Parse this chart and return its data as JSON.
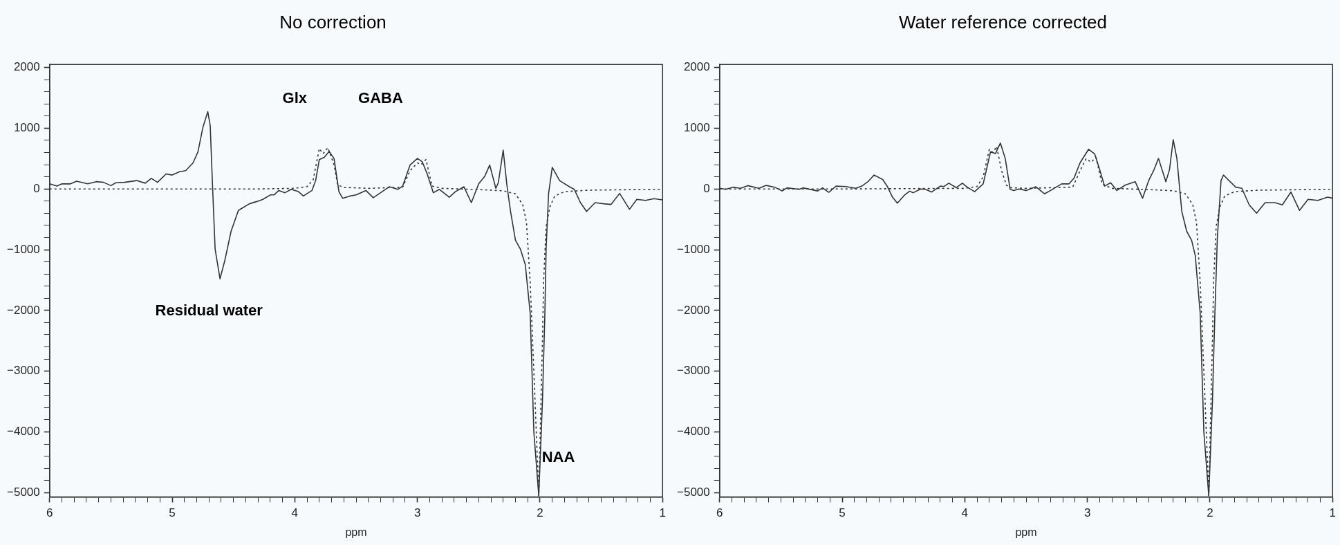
{
  "chart_data": [
    {
      "type": "line",
      "title": "No correction",
      "xlabel": "ppm",
      "xlim": [
        6,
        1
      ],
      "ylim": [
        -5070,
        2050
      ],
      "xticks": [
        6,
        {
          "value": 5.9,
          "label": null
        },
        {
          "value": 5.8,
          "label": null
        },
        {
          "value": 5.7,
          "label": null
        },
        {
          "value": 5.6,
          "label": null
        },
        {
          "value": 5.5,
          "label": null
        },
        {
          "value": 5.4,
          "label": null
        },
        {
          "value": 5.3,
          "label": null
        },
        {
          "value": 5.2,
          "label": null
        },
        {
          "value": 5.1,
          "label": null
        },
        5,
        {
          "value": 4.9,
          "label": null
        },
        {
          "value": 4.8,
          "label": null
        },
        {
          "value": 4.7,
          "label": null
        },
        {
          "value": 4.6,
          "label": null
        },
        {
          "value": 4.5,
          "label": null
        },
        {
          "value": 4.4,
          "label": null
        },
        {
          "value": 4.3,
          "label": null
        },
        {
          "value": 4.2,
          "label": null
        },
        {
          "value": 4.1,
          "label": null
        },
        4,
        {
          "value": 3.9,
          "label": null
        },
        {
          "value": 3.8,
          "label": null
        },
        {
          "value": 3.7,
          "label": null
        },
        {
          "value": 3.6,
          "label": null
        },
        {
          "value": 3.5,
          "label": null
        },
        {
          "value": 3.4,
          "label": null
        },
        {
          "value": 3.3,
          "label": null
        },
        {
          "value": 3.2,
          "label": null
        },
        {
          "value": 3.1,
          "label": null
        },
        3,
        {
          "value": 2.9,
          "label": null
        },
        {
          "value": 2.8,
          "label": null
        },
        {
          "value": 2.7,
          "label": null
        },
        {
          "value": 2.6,
          "label": null
        },
        {
          "value": 2.5,
          "label": null
        },
        {
          "value": 2.4,
          "label": null
        },
        {
          "value": 2.3,
          "label": null
        },
        {
          "value": 2.2,
          "label": null
        },
        {
          "value": 2.1,
          "label": null
        },
        2,
        {
          "value": 1.9,
          "label": null
        },
        {
          "value": 1.8,
          "label": null
        },
        {
          "value": 1.7,
          "label": null
        },
        {
          "value": 1.6,
          "label": null
        },
        {
          "value": 1.5,
          "label": null
        },
        {
          "value": 1.4,
          "label": null
        },
        {
          "value": 1.3,
          "label": null
        },
        {
          "value": 1.2,
          "label": null
        },
        {
          "value": 1.1,
          "label": null
        },
        1
      ],
      "yticks": [
        {
          "value": -5000,
          "label": "−5000"
        },
        {
          "value": -4800,
          "label": null
        },
        {
          "value": -4600,
          "label": null
        },
        {
          "value": -4400,
          "label": null
        },
        {
          "value": -4200,
          "label": null
        },
        {
          "value": -4000,
          "label": "−4000"
        },
        {
          "value": -3800,
          "label": null
        },
        {
          "value": -3600,
          "label": null
        },
        {
          "value": -3400,
          "label": null
        },
        {
          "value": -3200,
          "label": null
        },
        {
          "value": -3000,
          "label": "−3000"
        },
        {
          "value": -2800,
          "label": null
        },
        {
          "value": -2600,
          "label": null
        },
        {
          "value": -2400,
          "label": null
        },
        {
          "value": -2200,
          "label": null
        },
        {
          "value": -2000,
          "label": "−2000"
        },
        {
          "value": -1800,
          "label": null
        },
        {
          "value": -1600,
          "label": null
        },
        {
          "value": -1400,
          "label": null
        },
        {
          "value": -1200,
          "label": null
        },
        {
          "value": -1000,
          "label": "−1000"
        },
        {
          "value": -800,
          "label": null
        },
        {
          "value": -600,
          "label": null
        },
        {
          "value": -400,
          "label": null
        },
        {
          "value": -200,
          "label": null
        },
        0,
        {
          "value": 200,
          "label": null
        },
        {
          "value": 400,
          "label": null
        },
        {
          "value": 600,
          "label": null
        },
        {
          "value": 800,
          "label": null
        },
        1000,
        {
          "value": 1200,
          "label": null
        },
        {
          "value": 1400,
          "label": null
        },
        {
          "value": 1600,
          "label": null
        },
        {
          "value": 1800,
          "label": null
        },
        2000
      ],
      "marker": "none",
      "grid": false,
      "legend": false,
      "annotations": [
        "Residual water",
        "Glx",
        "GABA",
        "NAA"
      ],
      "series": [
        {
          "color": "#333333",
          "line_style": "solid",
          "x": [
            6.0,
            5.94,
            5.9,
            5.83,
            5.78,
            5.69,
            5.62,
            5.56,
            5.5,
            5.46,
            5.39,
            5.29,
            5.22,
            5.17,
            5.12,
            5.05,
            5.0,
            4.94,
            4.89,
            4.83,
            4.79,
            4.75,
            4.71,
            4.69,
            4.67,
            4.65,
            4.61,
            4.57,
            4.52,
            4.46,
            4.43,
            4.37,
            4.31,
            4.26,
            4.2,
            4.17,
            4.13,
            4.08,
            4.03,
            3.97,
            3.93,
            3.86,
            3.83,
            3.8,
            3.76,
            3.72,
            3.68,
            3.64,
            3.61,
            3.55,
            3.5,
            3.42,
            3.36,
            3.3,
            3.23,
            3.16,
            3.12,
            3.06,
            3.0,
            2.96,
            2.92,
            2.87,
            2.82,
            2.74,
            2.69,
            2.62,
            2.56,
            2.5,
            2.45,
            2.41,
            2.36,
            2.34,
            2.3,
            2.27,
            2.24,
            2.2,
            2.16,
            2.12,
            2.08,
            2.05,
            2.01,
            1.98,
            1.96,
            1.95,
            1.93,
            1.9,
            1.84,
            1.76,
            1.72,
            1.67,
            1.62,
            1.55,
            1.48,
            1.42,
            1.35,
            1.27,
            1.21,
            1.14,
            1.07,
            1.0
          ],
          "values": [
            84,
            47,
            84,
            84,
            127,
            84,
            120,
            109,
            55,
            102,
            109,
            138,
            95,
            175,
            109,
            247,
            229,
            284,
            302,
            429,
            611,
            1011,
            1273,
            1047,
            0,
            -989,
            -1480,
            -1171,
            -698,
            -353,
            -316,
            -244,
            -207,
            -171,
            -98,
            -98,
            -25,
            -62,
            -7,
            -44,
            -116,
            -25,
            138,
            484,
            520,
            618,
            502,
            -44,
            -153,
            -116,
            -98,
            -25,
            -145,
            -62,
            36,
            -7,
            47,
            393,
            502,
            447,
            247,
            -62,
            -7,
            -135,
            -44,
            36,
            -225,
            84,
            211,
            393,
            11,
            102,
            640,
            65,
            -371,
            -844,
            -989,
            -1244,
            -2044,
            -4000,
            -5050,
            -3500,
            -2044,
            -989,
            -80,
            356,
            138,
            36,
            -7,
            -225,
            -371,
            -225,
            -244,
            -255,
            -73,
            -335,
            -171,
            -189,
            -160,
            -180
          ]
        },
        {
          "color": "#333333",
          "line_style": "dotted",
          "x": [
            6.0,
            5.0,
            4.3,
            4.0,
            3.9,
            3.85,
            3.8,
            3.77,
            3.73,
            3.68,
            3.65,
            3.6,
            3.4,
            3.12,
            3.06,
            3.0,
            2.97,
            2.93,
            2.88,
            2.8,
            2.5,
            2.3,
            2.2,
            2.14,
            2.11,
            2.08,
            2.04,
            2.01,
            1.98,
            1.97,
            1.95,
            1.92,
            1.88,
            1.8,
            1.6,
            1.0
          ],
          "values": [
            0,
            0,
            0,
            10,
            40,
            150,
            665,
            580,
            680,
            400,
            65,
            25,
            10,
            30,
            300,
            429,
            400,
            484,
            47,
            10,
            -10,
            -30,
            -80,
            -262,
            -553,
            -1534,
            -3500,
            -5050,
            -2500,
            -1500,
            -625,
            -298,
            -116,
            -44,
            -20,
            -5
          ]
        }
      ]
    },
    {
      "type": "line",
      "title": "Water reference corrected",
      "xlabel": "ppm",
      "xlim": [
        6,
        1
      ],
      "ylim": [
        -5070,
        2050
      ],
      "xticks": [
        6,
        {
          "value": 5.9,
          "label": null
        },
        {
          "value": 5.8,
          "label": null
        },
        {
          "value": 5.7,
          "label": null
        },
        {
          "value": 5.6,
          "label": null
        },
        {
          "value": 5.5,
          "label": null
        },
        {
          "value": 5.4,
          "label": null
        },
        {
          "value": 5.3,
          "label": null
        },
        {
          "value": 5.2,
          "label": null
        },
        {
          "value": 5.1,
          "label": null
        },
        5,
        {
          "value": 4.9,
          "label": null
        },
        {
          "value": 4.8,
          "label": null
        },
        {
          "value": 4.7,
          "label": null
        },
        {
          "value": 4.6,
          "label": null
        },
        {
          "value": 4.5,
          "label": null
        },
        {
          "value": 4.4,
          "label": null
        },
        {
          "value": 4.3,
          "label": null
        },
        {
          "value": 4.2,
          "label": null
        },
        {
          "value": 4.1,
          "label": null
        },
        4,
        {
          "value": 3.9,
          "label": null
        },
        {
          "value": 3.8,
          "label": null
        },
        {
          "value": 3.7,
          "label": null
        },
        {
          "value": 3.6,
          "label": null
        },
        {
          "value": 3.5,
          "label": null
        },
        {
          "value": 3.4,
          "label": null
        },
        {
          "value": 3.3,
          "label": null
        },
        {
          "value": 3.2,
          "label": null
        },
        {
          "value": 3.1,
          "label": null
        },
        3,
        {
          "value": 2.9,
          "label": null
        },
        {
          "value": 2.8,
          "label": null
        },
        {
          "value": 2.7,
          "label": null
        },
        {
          "value": 2.6,
          "label": null
        },
        {
          "value": 2.5,
          "label": null
        },
        {
          "value": 2.4,
          "label": null
        },
        {
          "value": 2.3,
          "label": null
        },
        {
          "value": 2.2,
          "label": null
        },
        {
          "value": 2.1,
          "label": null
        },
        2,
        {
          "value": 1.9,
          "label": null
        },
        {
          "value": 1.8,
          "label": null
        },
        {
          "value": 1.7,
          "label": null
        },
        {
          "value": 1.6,
          "label": null
        },
        {
          "value": 1.5,
          "label": null
        },
        {
          "value": 1.4,
          "label": null
        },
        {
          "value": 1.3,
          "label": null
        },
        {
          "value": 1.2,
          "label": null
        },
        {
          "value": 1.1,
          "label": null
        },
        1
      ],
      "yticks": [
        {
          "value": -5000,
          "label": "−5000"
        },
        {
          "value": -4800,
          "label": null
        },
        {
          "value": -4600,
          "label": null
        },
        {
          "value": -4400,
          "label": null
        },
        {
          "value": -4200,
          "label": null
        },
        {
          "value": -4000,
          "label": "−4000"
        },
        {
          "value": -3800,
          "label": null
        },
        {
          "value": -3600,
          "label": null
        },
        {
          "value": -3400,
          "label": null
        },
        {
          "value": -3200,
          "label": null
        },
        {
          "value": -3000,
          "label": "−3000"
        },
        {
          "value": -2800,
          "label": null
        },
        {
          "value": -2600,
          "label": null
        },
        {
          "value": -2400,
          "label": null
        },
        {
          "value": -2200,
          "label": null
        },
        {
          "value": -2000,
          "label": "−2000"
        },
        {
          "value": -1800,
          "label": null
        },
        {
          "value": -1600,
          "label": null
        },
        {
          "value": -1400,
          "label": null
        },
        {
          "value": -1200,
          "label": null
        },
        {
          "value": -1000,
          "label": "−1000"
        },
        {
          "value": -800,
          "label": null
        },
        {
          "value": -600,
          "label": null
        },
        {
          "value": -400,
          "label": null
        },
        {
          "value": -200,
          "label": null
        },
        0,
        {
          "value": 200,
          "label": null
        },
        {
          "value": 400,
          "label": null
        },
        {
          "value": 600,
          "label": null
        },
        {
          "value": 800,
          "label": null
        },
        1000,
        {
          "value": 1200,
          "label": null
        },
        {
          "value": 1400,
          "label": null
        },
        {
          "value": 1600,
          "label": null
        },
        {
          "value": 1800,
          "label": null
        },
        2000
      ],
      "marker": "none",
      "grid": false,
      "legend": false,
      "series": [
        {
          "color": "#333333",
          "line_style": "solid",
          "x": [
            6.0,
            5.95,
            5.89,
            5.83,
            5.77,
            5.68,
            5.62,
            5.55,
            5.49,
            5.45,
            5.35,
            5.32,
            5.2,
            5.16,
            5.11,
            5.05,
            4.97,
            4.89,
            4.84,
            4.79,
            4.74,
            4.67,
            4.63,
            4.59,
            4.55,
            4.49,
            4.45,
            4.42,
            4.36,
            4.32,
            4.27,
            4.2,
            4.17,
            4.13,
            4.07,
            4.02,
            3.98,
            3.92,
            3.85,
            3.79,
            3.75,
            3.71,
            3.67,
            3.63,
            3.6,
            3.56,
            3.5,
            3.42,
            3.35,
            3.3,
            3.21,
            3.15,
            3.11,
            3.06,
            2.99,
            2.94,
            2.9,
            2.86,
            2.81,
            2.76,
            2.69,
            2.61,
            2.55,
            2.5,
            2.46,
            2.42,
            2.36,
            2.33,
            2.3,
            2.27,
            2.23,
            2.19,
            2.15,
            2.12,
            2.08,
            2.05,
            2.01,
            1.98,
            1.96,
            1.94,
            1.91,
            1.89,
            1.79,
            1.74,
            1.68,
            1.62,
            1.55,
            1.47,
            1.41,
            1.34,
            1.27,
            1.2,
            1.12,
            1.04,
            1.0
          ],
          "values": [
            11,
            -7,
            29,
            11,
            55,
            11,
            58,
            29,
            -33,
            18,
            -7,
            18,
            -33,
            18,
            -55,
            47,
            40,
            11,
            47,
            120,
            229,
            156,
            36,
            -135,
            -233,
            -98,
            -36,
            -62,
            0,
            -7,
            -51,
            47,
            40,
            95,
            22,
            95,
            29,
            -44,
            84,
            611,
            582,
            756,
            502,
            -7,
            -25,
            0,
            -25,
            36,
            -80,
            -25,
            84,
            84,
            175,
            429,
            654,
            575,
            320,
            47,
            102,
            -25,
            65,
            120,
            -153,
            138,
            302,
            502,
            120,
            320,
            811,
            502,
            -371,
            -698,
            -844,
            -1098,
            -2044,
            -4000,
            -5050,
            -3500,
            -2044,
            -807,
            138,
            229,
            29,
            11,
            -262,
            -400,
            -225,
            -225,
            -262,
            -51,
            -353,
            -171,
            -189,
            -135,
            -153
          ]
        },
        {
          "color": "#333333",
          "line_style": "dotted",
          "x": [
            6.0,
            5.0,
            4.0,
            3.9,
            3.85,
            3.8,
            3.77,
            3.74,
            3.7,
            3.66,
            3.62,
            3.5,
            3.12,
            3.06,
            3.01,
            2.97,
            2.93,
            2.88,
            2.8,
            2.5,
            2.3,
            2.2,
            2.14,
            2.11,
            2.08,
            2.04,
            2.01,
            1.98,
            1.97,
            1.95,
            1.92,
            1.88,
            1.8,
            1.6,
            1.0
          ],
          "values": [
            0,
            0,
            10,
            40,
            200,
            650,
            600,
            700,
            300,
            60,
            20,
            10,
            30,
            300,
            500,
            440,
            520,
            80,
            10,
            -10,
            -30,
            -80,
            -262,
            -553,
            -1534,
            -3500,
            -5050,
            -2500,
            -1500,
            -625,
            -298,
            -116,
            -44,
            -20,
            -5
          ]
        }
      ]
    }
  ]
}
